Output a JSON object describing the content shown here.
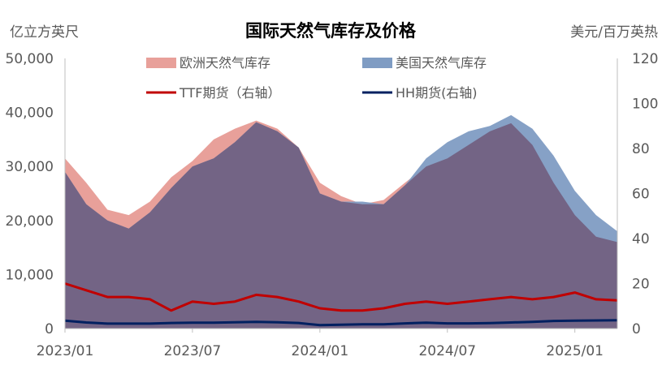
{
  "chart_data": {
    "type": "area",
    "title": "国际天然气库存及价格",
    "ylabel_left": "亿立方英尺",
    "ylabel_right": "美元/百万英热",
    "ylim_left": [
      0,
      50000
    ],
    "ylim_right": [
      0,
      120
    ],
    "yticks_left": [
      "0",
      "10,000",
      "20,000",
      "30,000",
      "40,000",
      "50,000"
    ],
    "yticks_right": [
      "0",
      "20",
      "40",
      "60",
      "80",
      "100",
      "120"
    ],
    "xticks": [
      "2023/01",
      "2023/07",
      "2024/01",
      "2024/07",
      "2025/01"
    ],
    "x": [
      "2023/01",
      "2023/02",
      "2023/03",
      "2023/04",
      "2023/05",
      "2023/06",
      "2023/07",
      "2023/08",
      "2023/09",
      "2023/10",
      "2023/11",
      "2023/12",
      "2024/01",
      "2024/02",
      "2024/03",
      "2024/04",
      "2024/05",
      "2024/06",
      "2024/07",
      "2024/08",
      "2024/09",
      "2024/10",
      "2024/11",
      "2024/12",
      "2025/01",
      "2025/02",
      "2025/03"
    ],
    "legend": [
      "欧洲天然气库存",
      "美国天然气库存",
      "TTF期货（右轴）",
      "HH期货(右轴)"
    ],
    "legend_position": "top",
    "series": [
      {
        "name": "欧洲天然气库存",
        "type": "area",
        "axis": "left",
        "color": "#E8A09A",
        "values": [
          31500,
          27000,
          22000,
          21000,
          23500,
          28000,
          31000,
          35000,
          37000,
          38500,
          37000,
          33500,
          27000,
          24500,
          23000,
          23800,
          27000,
          30000,
          31500,
          34000,
          36500,
          38000,
          34000,
          27000,
          21000,
          17000,
          16000
        ]
      },
      {
        "name": "美国天然气库存",
        "type": "area",
        "axis": "left",
        "color": "#7F9CC3",
        "values": [
          29000,
          23000,
          20000,
          18500,
          21500,
          26000,
          30000,
          31500,
          34500,
          38200,
          36500,
          33500,
          25000,
          23500,
          23500,
          23000,
          26500,
          31500,
          34500,
          36500,
          37500,
          39500,
          37000,
          32000,
          25500,
          21000,
          18000
        ]
      },
      {
        "name": "TTF期货（右轴）",
        "type": "line",
        "axis": "right",
        "color": "#C00000",
        "values": [
          20,
          17,
          14,
          14,
          13,
          8,
          12,
          11,
          12,
          15,
          14,
          12,
          9,
          8,
          8,
          9,
          11,
          12,
          11,
          12,
          13,
          14,
          13,
          14,
          16,
          13,
          12.5
        ]
      },
      {
        "name": "HH期货(右轴)",
        "type": "line",
        "axis": "right",
        "color": "#002060",
        "values": [
          3.5,
          2.7,
          2.2,
          2.2,
          2.2,
          2.5,
          2.6,
          2.6,
          2.8,
          3.0,
          2.8,
          2.5,
          1.5,
          1.7,
          1.9,
          1.9,
          2.3,
          2.6,
          2.3,
          2.3,
          2.4,
          2.7,
          3.0,
          3.4,
          3.5,
          3.6,
          3.7
        ]
      }
    ]
  }
}
